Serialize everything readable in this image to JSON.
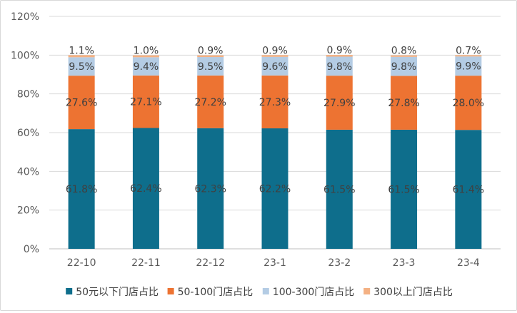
{
  "chart_data": {
    "type": "bar",
    "stacked": true,
    "categories": [
      "22-10",
      "22-11",
      "22-12",
      "23-1",
      "23-2",
      "23-3",
      "23-4"
    ],
    "series": [
      {
        "name": "50元以下门店占比",
        "color": "#0E6E8C",
        "values": [
          61.8,
          62.4,
          62.3,
          62.2,
          61.5,
          61.5,
          61.4
        ]
      },
      {
        "name": "50-100门店占比",
        "color": "#ED7332",
        "values": [
          27.6,
          27.1,
          27.2,
          27.3,
          27.9,
          27.8,
          28.0
        ]
      },
      {
        "name": "100-300门店占比",
        "color": "#B4CCE4",
        "values": [
          9.5,
          9.4,
          9.5,
          9.6,
          9.8,
          9.8,
          9.9
        ]
      },
      {
        "name": "300以上门店占比",
        "color": "#F4B183",
        "values": [
          1.1,
          1.0,
          0.9,
          0.9,
          0.9,
          0.8,
          0.7
        ]
      }
    ],
    "data_labels": [
      [
        "61.8%",
        "62.4%",
        "62.3%",
        "62.2%",
        "61.5%",
        "61.5%",
        "61.4%"
      ],
      [
        "27.6%",
        "27.1%",
        "27.2%",
        "27.3%",
        "27.9%",
        "27.8%",
        "28.0%"
      ],
      [
        "9.5%",
        "9.4%",
        "9.5%",
        "9.6%",
        "9.8%",
        "9.8%",
        "9.9%"
      ],
      [
        "1.1%",
        "1.0%",
        "0.9%",
        "0.9%",
        "0.9%",
        "0.8%",
        "0.7%"
      ]
    ],
    "y_ticks": [
      "0%",
      "20%",
      "40%",
      "60%",
      "80%",
      "100%",
      "120%"
    ],
    "ylim": [
      0,
      120
    ],
    "grid": true,
    "legend_position": "bottom",
    "title": "",
    "xlabel": "",
    "ylabel": ""
  }
}
